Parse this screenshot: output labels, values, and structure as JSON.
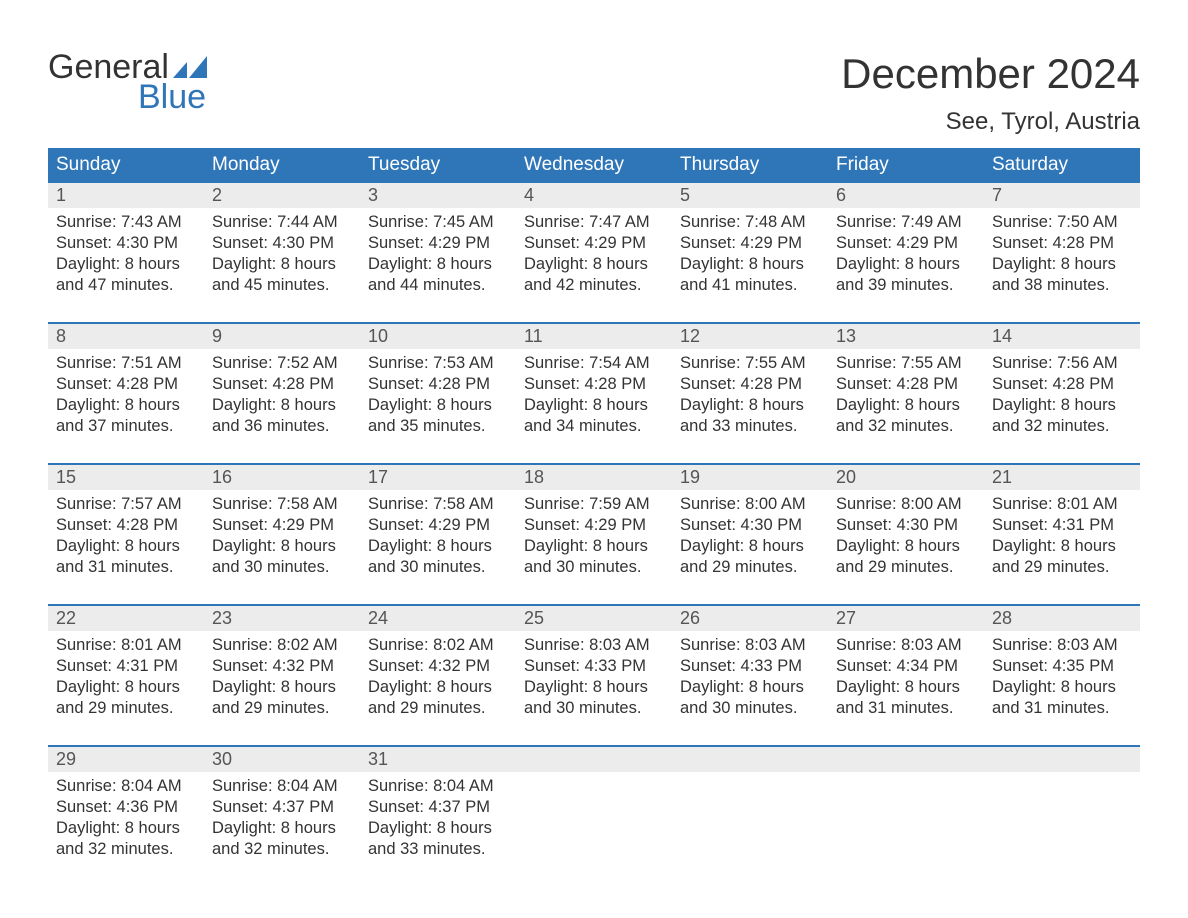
{
  "brand": {
    "line1": "General",
    "line2": "Blue",
    "logo_color": "#2f76b9"
  },
  "title": {
    "month": "December 2024",
    "location": "See, Tyrol, Austria"
  },
  "colors": {
    "header_bg": "#2f76b9",
    "header_text": "#ffffff",
    "date_row_bg": "#ececec",
    "week_divider": "#2f76b9",
    "text": "#333333",
    "page_bg": "#ffffff"
  },
  "typography": {
    "month_fontsize": 42,
    "location_fontsize": 24,
    "dayheader_fontsize": 19,
    "date_fontsize": 18,
    "body_fontsize": 16.5
  },
  "layout": {
    "columns": 7,
    "weeks": 5
  },
  "day_names": [
    "Sunday",
    "Monday",
    "Tuesday",
    "Wednesday",
    "Thursday",
    "Friday",
    "Saturday"
  ],
  "weeks": [
    {
      "days": [
        {
          "date": "1",
          "sunrise": "Sunrise: 7:43 AM",
          "sunset": "Sunset: 4:30 PM",
          "daylight": "Daylight: 8 hours and 47 minutes."
        },
        {
          "date": "2",
          "sunrise": "Sunrise: 7:44 AM",
          "sunset": "Sunset: 4:30 PM",
          "daylight": "Daylight: 8 hours and 45 minutes."
        },
        {
          "date": "3",
          "sunrise": "Sunrise: 7:45 AM",
          "sunset": "Sunset: 4:29 PM",
          "daylight": "Daylight: 8 hours and 44 minutes."
        },
        {
          "date": "4",
          "sunrise": "Sunrise: 7:47 AM",
          "sunset": "Sunset: 4:29 PM",
          "daylight": "Daylight: 8 hours and 42 minutes."
        },
        {
          "date": "5",
          "sunrise": "Sunrise: 7:48 AM",
          "sunset": "Sunset: 4:29 PM",
          "daylight": "Daylight: 8 hours and 41 minutes."
        },
        {
          "date": "6",
          "sunrise": "Sunrise: 7:49 AM",
          "sunset": "Sunset: 4:29 PM",
          "daylight": "Daylight: 8 hours and 39 minutes."
        },
        {
          "date": "7",
          "sunrise": "Sunrise: 7:50 AM",
          "sunset": "Sunset: 4:28 PM",
          "daylight": "Daylight: 8 hours and 38 minutes."
        }
      ]
    },
    {
      "days": [
        {
          "date": "8",
          "sunrise": "Sunrise: 7:51 AM",
          "sunset": "Sunset: 4:28 PM",
          "daylight": "Daylight: 8 hours and 37 minutes."
        },
        {
          "date": "9",
          "sunrise": "Sunrise: 7:52 AM",
          "sunset": "Sunset: 4:28 PM",
          "daylight": "Daylight: 8 hours and 36 minutes."
        },
        {
          "date": "10",
          "sunrise": "Sunrise: 7:53 AM",
          "sunset": "Sunset: 4:28 PM",
          "daylight": "Daylight: 8 hours and 35 minutes."
        },
        {
          "date": "11",
          "sunrise": "Sunrise: 7:54 AM",
          "sunset": "Sunset: 4:28 PM",
          "daylight": "Daylight: 8 hours and 34 minutes."
        },
        {
          "date": "12",
          "sunrise": "Sunrise: 7:55 AM",
          "sunset": "Sunset: 4:28 PM",
          "daylight": "Daylight: 8 hours and 33 minutes."
        },
        {
          "date": "13",
          "sunrise": "Sunrise: 7:55 AM",
          "sunset": "Sunset: 4:28 PM",
          "daylight": "Daylight: 8 hours and 32 minutes."
        },
        {
          "date": "14",
          "sunrise": "Sunrise: 7:56 AM",
          "sunset": "Sunset: 4:28 PM",
          "daylight": "Daylight: 8 hours and 32 minutes."
        }
      ]
    },
    {
      "days": [
        {
          "date": "15",
          "sunrise": "Sunrise: 7:57 AM",
          "sunset": "Sunset: 4:28 PM",
          "daylight": "Daylight: 8 hours and 31 minutes."
        },
        {
          "date": "16",
          "sunrise": "Sunrise: 7:58 AM",
          "sunset": "Sunset: 4:29 PM",
          "daylight": "Daylight: 8 hours and 30 minutes."
        },
        {
          "date": "17",
          "sunrise": "Sunrise: 7:58 AM",
          "sunset": "Sunset: 4:29 PM",
          "daylight": "Daylight: 8 hours and 30 minutes."
        },
        {
          "date": "18",
          "sunrise": "Sunrise: 7:59 AM",
          "sunset": "Sunset: 4:29 PM",
          "daylight": "Daylight: 8 hours and 30 minutes."
        },
        {
          "date": "19",
          "sunrise": "Sunrise: 8:00 AM",
          "sunset": "Sunset: 4:30 PM",
          "daylight": "Daylight: 8 hours and 29 minutes."
        },
        {
          "date": "20",
          "sunrise": "Sunrise: 8:00 AM",
          "sunset": "Sunset: 4:30 PM",
          "daylight": "Daylight: 8 hours and 29 minutes."
        },
        {
          "date": "21",
          "sunrise": "Sunrise: 8:01 AM",
          "sunset": "Sunset: 4:31 PM",
          "daylight": "Daylight: 8 hours and 29 minutes."
        }
      ]
    },
    {
      "days": [
        {
          "date": "22",
          "sunrise": "Sunrise: 8:01 AM",
          "sunset": "Sunset: 4:31 PM",
          "daylight": "Daylight: 8 hours and 29 minutes."
        },
        {
          "date": "23",
          "sunrise": "Sunrise: 8:02 AM",
          "sunset": "Sunset: 4:32 PM",
          "daylight": "Daylight: 8 hours and 29 minutes."
        },
        {
          "date": "24",
          "sunrise": "Sunrise: 8:02 AM",
          "sunset": "Sunset: 4:32 PM",
          "daylight": "Daylight: 8 hours and 29 minutes."
        },
        {
          "date": "25",
          "sunrise": "Sunrise: 8:03 AM",
          "sunset": "Sunset: 4:33 PM",
          "daylight": "Daylight: 8 hours and 30 minutes."
        },
        {
          "date": "26",
          "sunrise": "Sunrise: 8:03 AM",
          "sunset": "Sunset: 4:33 PM",
          "daylight": "Daylight: 8 hours and 30 minutes."
        },
        {
          "date": "27",
          "sunrise": "Sunrise: 8:03 AM",
          "sunset": "Sunset: 4:34 PM",
          "daylight": "Daylight: 8 hours and 31 minutes."
        },
        {
          "date": "28",
          "sunrise": "Sunrise: 8:03 AM",
          "sunset": "Sunset: 4:35 PM",
          "daylight": "Daylight: 8 hours and 31 minutes."
        }
      ]
    },
    {
      "days": [
        {
          "date": "29",
          "sunrise": "Sunrise: 8:04 AM",
          "sunset": "Sunset: 4:36 PM",
          "daylight": "Daylight: 8 hours and 32 minutes."
        },
        {
          "date": "30",
          "sunrise": "Sunrise: 8:04 AM",
          "sunset": "Sunset: 4:37 PM",
          "daylight": "Daylight: 8 hours and 32 minutes."
        },
        {
          "date": "31",
          "sunrise": "Sunrise: 8:04 AM",
          "sunset": "Sunset: 4:37 PM",
          "daylight": "Daylight: 8 hours and 33 minutes."
        },
        {
          "date": "",
          "sunrise": "",
          "sunset": "",
          "daylight": ""
        },
        {
          "date": "",
          "sunrise": "",
          "sunset": "",
          "daylight": ""
        },
        {
          "date": "",
          "sunrise": "",
          "sunset": "",
          "daylight": ""
        },
        {
          "date": "",
          "sunrise": "",
          "sunset": "",
          "daylight": ""
        }
      ]
    }
  ]
}
